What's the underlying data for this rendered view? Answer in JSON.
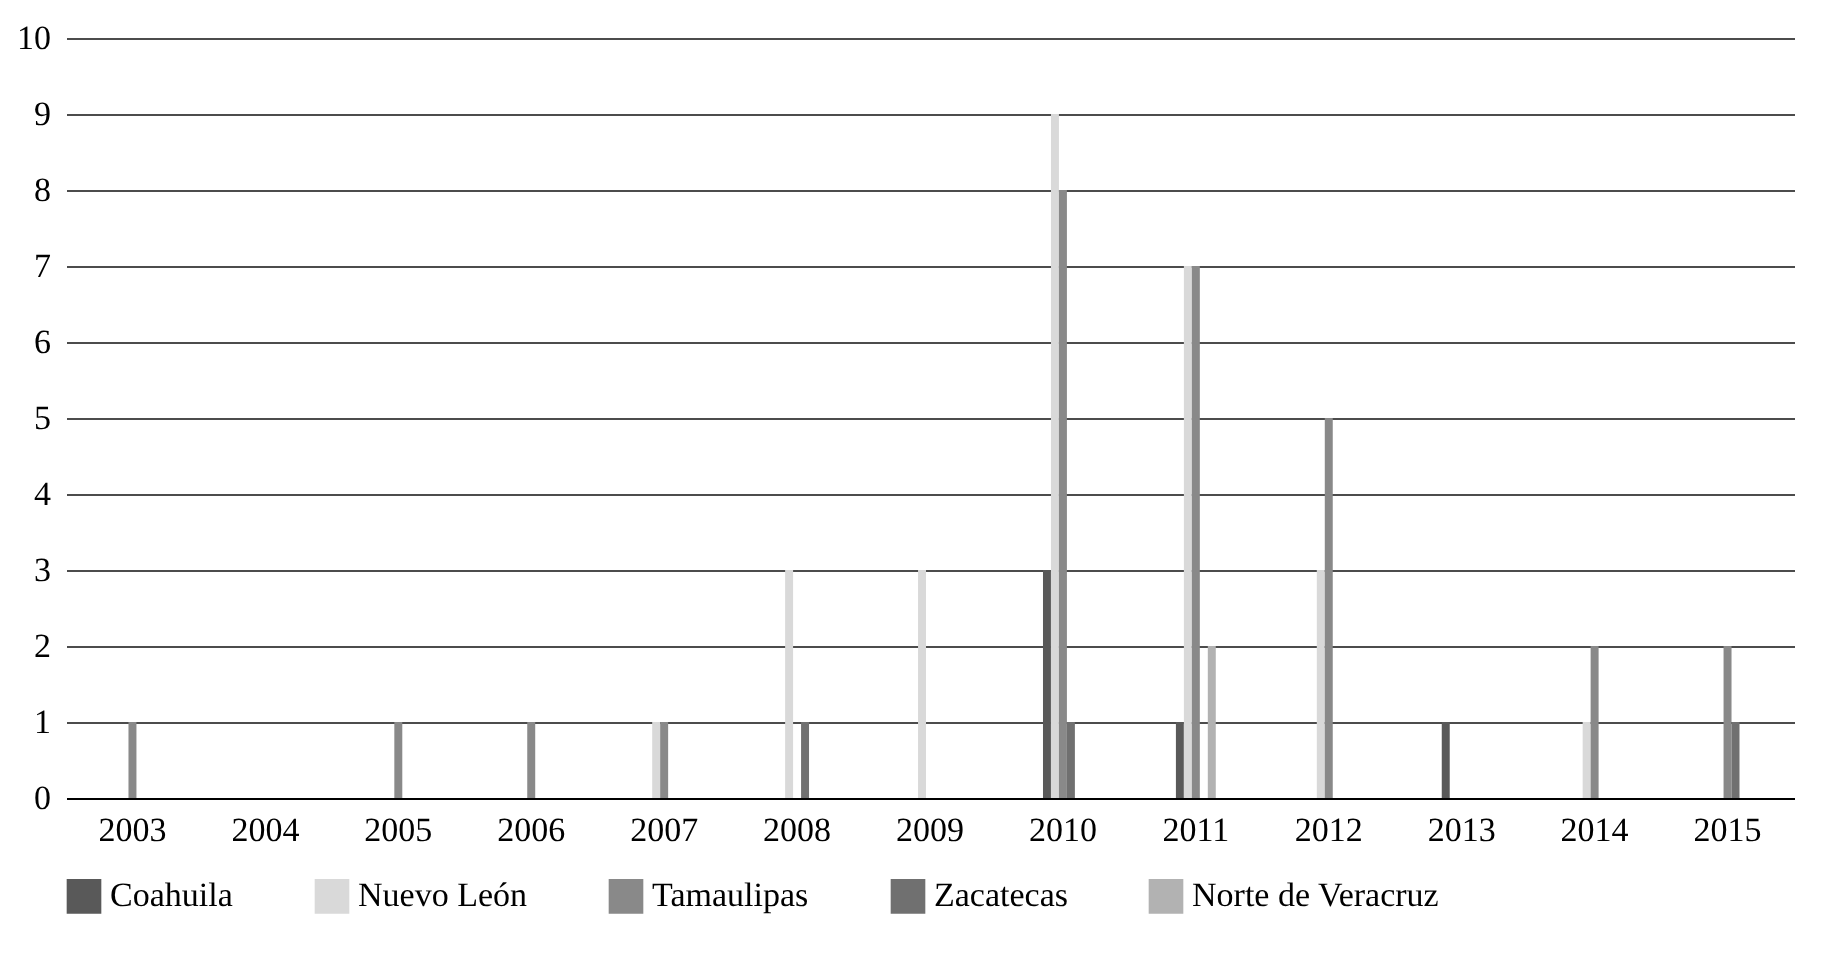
{
  "chart_data": {
    "type": "bar",
    "categories": [
      "2003",
      "2004",
      "2005",
      "2006",
      "2007",
      "2008",
      "2009",
      "2010",
      "2011",
      "2012",
      "2013",
      "2014",
      "2015"
    ],
    "series": [
      {
        "name": "Coahuila",
        "color": "#595959",
        "values": [
          0,
          0,
          0,
          0,
          0,
          0,
          0,
          3,
          1,
          0,
          1,
          0,
          0
        ]
      },
      {
        "name": "Nuevo León",
        "color": "#d9d9d9",
        "values": [
          0,
          0,
          0,
          0,
          1,
          3,
          3,
          9,
          7,
          3,
          0,
          1,
          0
        ]
      },
      {
        "name": "Tamaulipas",
        "color": "#898989",
        "values": [
          1,
          0,
          1,
          1,
          1,
          0,
          0,
          8,
          7,
          5,
          0,
          2,
          2
        ]
      },
      {
        "name": "Zacatecas",
        "color": "#707070",
        "values": [
          0,
          0,
          0,
          0,
          0,
          1,
          0,
          1,
          0,
          0,
          0,
          0,
          1
        ]
      },
      {
        "name": "Norte de Veracruz",
        "color": "#b2b2b2",
        "values": [
          0,
          0,
          0,
          0,
          0,
          0,
          0,
          0,
          2,
          0,
          0,
          0,
          0
        ]
      }
    ],
    "ylim": [
      0,
      10
    ],
    "yticks": [
      0,
      1,
      2,
      3,
      4,
      5,
      6,
      7,
      8,
      9,
      10
    ],
    "grid": "y",
    "legend": "bottom"
  }
}
